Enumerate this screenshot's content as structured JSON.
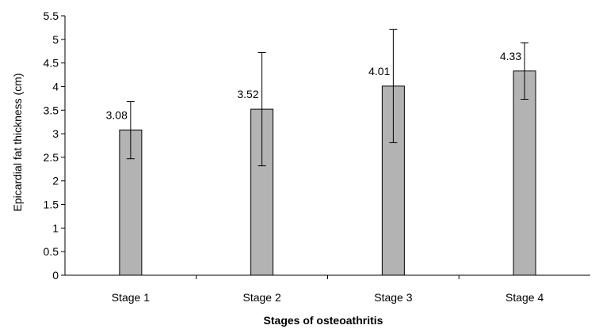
{
  "chart_data": {
    "type": "bar",
    "title": "",
    "xlabel": "Stages of osteoathritis",
    "ylabel": "Epicardial fat thickness (cm)",
    "categories": [
      "Stage 1",
      "Stage 2",
      "Stage 3",
      "Stage 4"
    ],
    "values": [
      3.08,
      3.52,
      4.01,
      4.33
    ],
    "value_labels": [
      "3.08",
      "3.52",
      "4.01",
      "4.33"
    ],
    "error_low": [
      2.47,
      2.32,
      2.81,
      3.73
    ],
    "error_high": [
      3.68,
      4.72,
      5.21,
      4.93
    ],
    "ylim": [
      0,
      5.5
    ],
    "yticks": [
      0,
      0.5,
      1,
      1.5,
      2,
      2.5,
      3,
      3.5,
      4,
      4.5,
      5,
      5.5
    ],
    "ytick_labels": [
      "0",
      "0.5",
      "1",
      "1.5",
      "2",
      "2.5",
      "3",
      "3.5",
      "4",
      "4.5",
      "5",
      "5.5"
    ],
    "grid": false,
    "legend": "none",
    "colors": {
      "bar_fill": "#b3b3b3",
      "bar_stroke": "#000000",
      "axis": "#000000"
    }
  }
}
